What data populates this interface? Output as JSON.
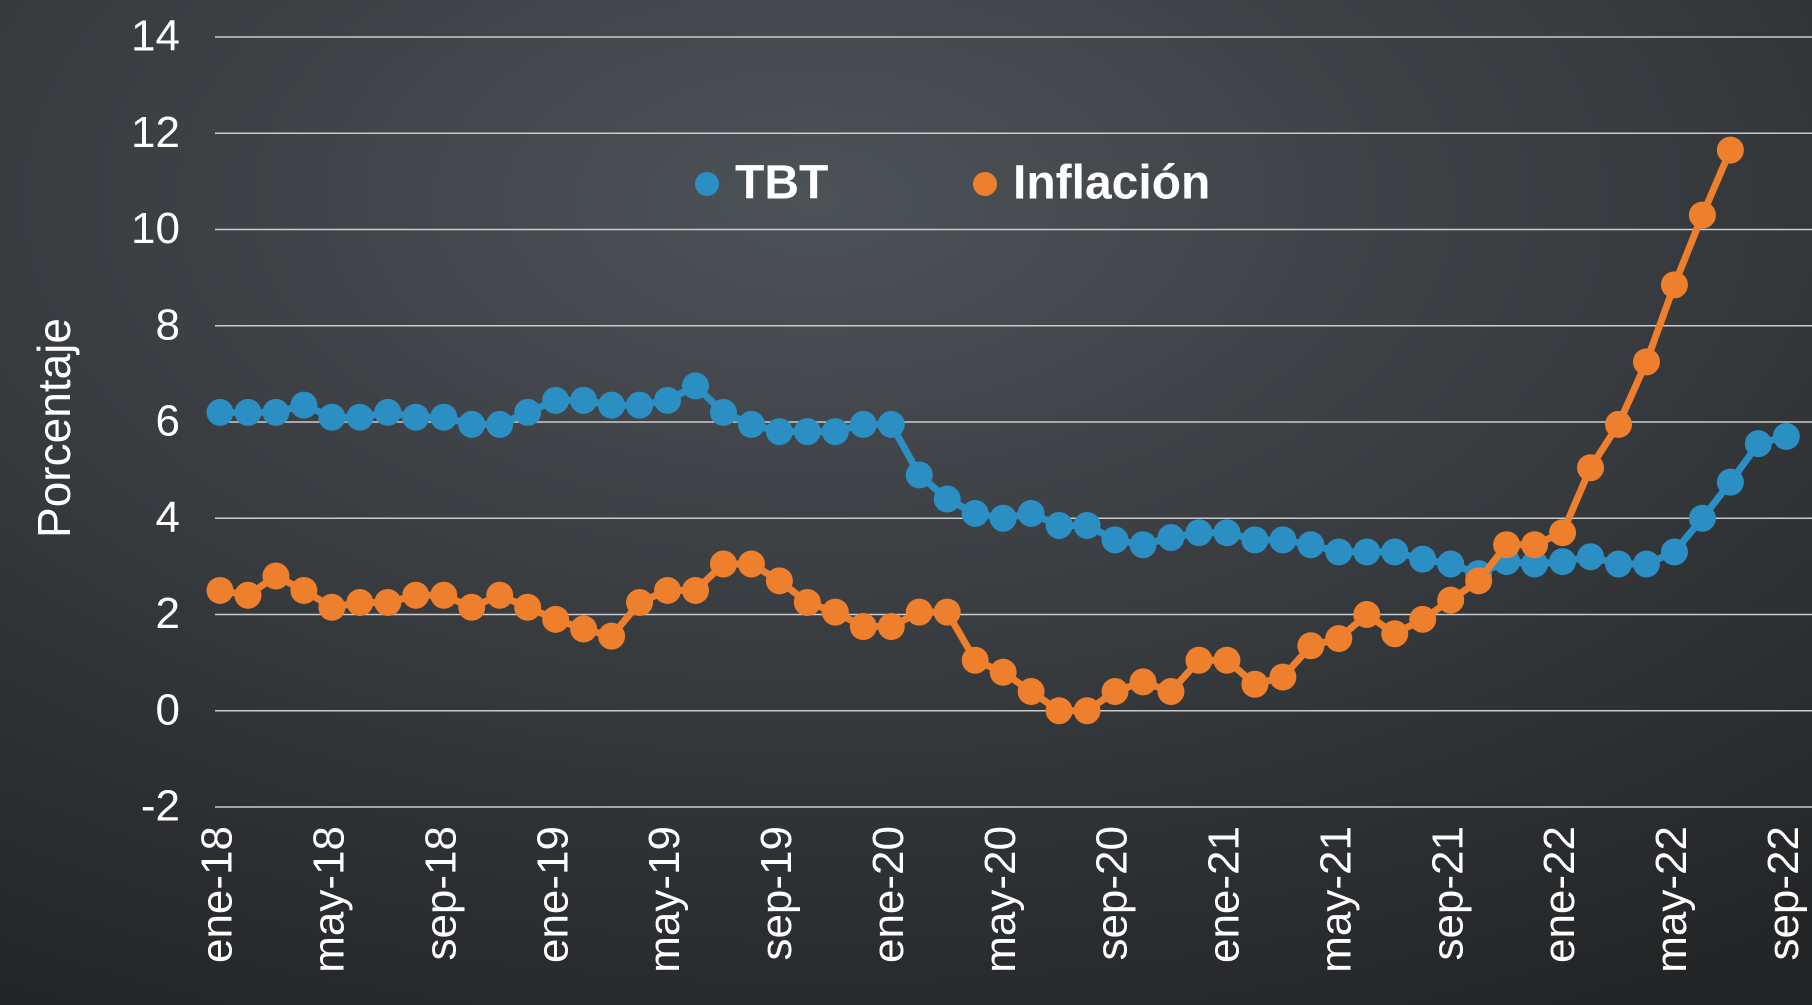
{
  "chart_data": {
    "type": "line",
    "y_label": "Porcentaje",
    "categories": [
      "ene-18",
      null,
      null,
      null,
      "may-18",
      null,
      null,
      null,
      "sep-18",
      null,
      null,
      null,
      "ene-19",
      null,
      null,
      null,
      "may-19",
      null,
      null,
      null,
      "sep-19",
      null,
      null,
      null,
      "ene-20",
      null,
      null,
      null,
      "may-20",
      null,
      null,
      null,
      "sep-20",
      null,
      null,
      null,
      "ene-21",
      null,
      null,
      null,
      "may-21",
      null,
      null,
      null,
      "sep-21",
      null,
      null,
      null,
      "ene-22",
      null,
      null,
      null,
      "may-22",
      null,
      null,
      null,
      "sep-22"
    ],
    "series": [
      {
        "name": "TBT",
        "color": "#2b8fc4",
        "values": [
          6.2,
          6.2,
          6.2,
          6.35,
          6.1,
          6.1,
          6.2,
          6.1,
          6.1,
          5.95,
          5.95,
          6.2,
          6.45,
          6.45,
          6.35,
          6.35,
          6.45,
          6.75,
          6.2,
          5.95,
          5.8,
          5.8,
          5.8,
          5.95,
          5.95,
          4.9,
          4.4,
          4.1,
          4.0,
          4.1,
          3.85,
          3.85,
          3.55,
          3.45,
          3.6,
          3.7,
          3.7,
          3.55,
          3.55,
          3.45,
          3.3,
          3.3,
          3.3,
          3.15,
          3.05,
          2.85,
          3.1,
          3.05,
          3.1,
          3.2,
          3.05,
          3.05,
          3.3,
          4.0,
          4.75,
          5.55,
          5.7
        ]
      },
      {
        "name": "Inflación",
        "color": "#ee7f2d",
        "values": [
          2.5,
          2.4,
          2.8,
          2.5,
          2.15,
          2.25,
          2.25,
          2.4,
          2.4,
          2.15,
          2.4,
          2.15,
          1.9,
          1.7,
          1.55,
          2.25,
          2.5,
          2.5,
          3.05,
          3.05,
          2.7,
          2.25,
          2.05,
          1.75,
          1.75,
          2.05,
          2.05,
          1.05,
          0.8,
          0.4,
          0.0,
          0.0,
          0.4,
          0.6,
          0.4,
          1.05,
          1.05,
          0.55,
          0.7,
          1.35,
          1.5,
          2.0,
          1.6,
          1.9,
          2.3,
          2.7,
          3.45,
          3.45,
          3.7,
          5.05,
          5.95,
          7.25,
          8.85,
          10.3,
          11.65,
          null,
          null
        ]
      }
    ],
    "ylim": [
      -2,
      14
    ],
    "yticks": [
      -2,
      0,
      2,
      4,
      6,
      8,
      10,
      12,
      14
    ],
    "grid": true,
    "legend": "top"
  }
}
